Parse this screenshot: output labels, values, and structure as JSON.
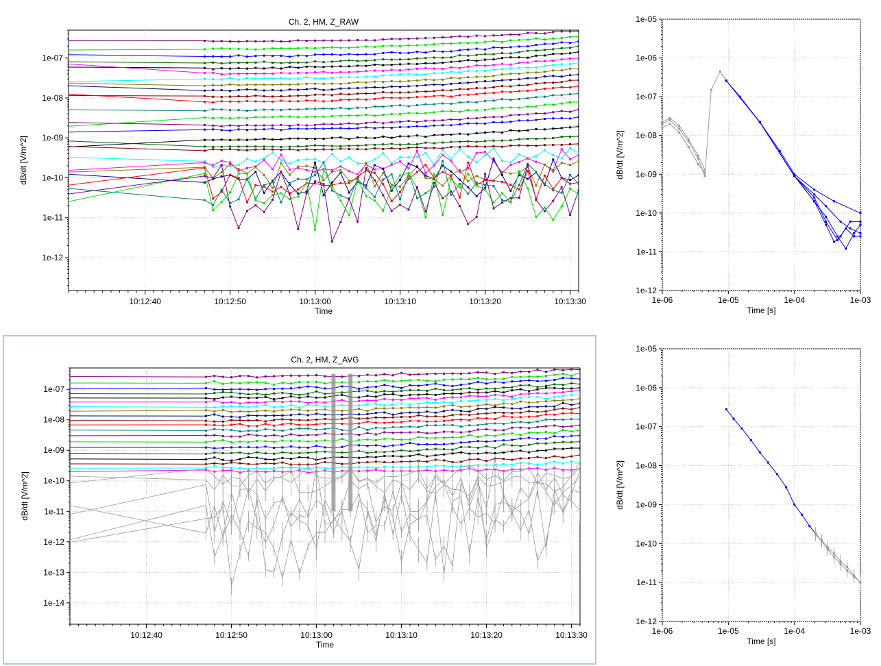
{
  "panels": [
    {
      "id": "raw_time",
      "title": "Ch. 2, HM, Z_RAW",
      "xlabel": "Time",
      "ylabel": "dB/dt [V/m^2]"
    },
    {
      "id": "raw_decay",
      "title": "",
      "xlabel": "Time [s]",
      "ylabel": "dB/dt [V/m^2]"
    },
    {
      "id": "avg_time",
      "title": "Ch. 2, HM, Z_AVG",
      "xlabel": "Time",
      "ylabel": "dB/dt [V/m^2]"
    },
    {
      "id": "avg_decay",
      "title": "",
      "xlabel": "Time [s]",
      "ylabel": "dB/dt [V/m^2]"
    }
  ],
  "chart_data": [
    {
      "id": "raw_time",
      "type": "line",
      "title": "Ch. 2, HM, Z_RAW",
      "xlabel": "Time",
      "ylabel": "dB/dt [V/m^2]",
      "y_scale": "log",
      "xlim": [
        "10:12:31",
        "10:13:31"
      ],
      "ylim": [
        1.5e-13,
        5e-07
      ],
      "x_ticks": [
        "10:12:40",
        "10:12:50",
        "10:13:00",
        "10:13:10",
        "10:13:20",
        "10:13:30"
      ],
      "y_ticks": [
        "1e-07",
        "1e-08",
        "1e-09",
        "1e-10",
        "1e-11",
        "1e-12"
      ],
      "grid": true,
      "legend": "none",
      "x_start": "10:12:31",
      "x_first_sample": "10:12:47",
      "x_end": "10:13:31",
      "series": [
        {
          "color": "#800080",
          "level_start": 2.6e-07,
          "level_end": 4.8e-07
        },
        {
          "color": "#00e000",
          "level_start": 1.7e-07,
          "level_end": 3.5e-07
        },
        {
          "color": "#0000ff",
          "level_start": 1.1e-07,
          "level_end": 2.6e-07
        },
        {
          "color": "#006400",
          "level_start": 7.5e-08,
          "level_end": 1.9e-07
        },
        {
          "color": "#000000",
          "level_start": 5.5e-08,
          "level_end": 1.4e-07
        },
        {
          "color": "#ff00ff",
          "level_start": 4.1e-08,
          "level_end": 1e-07
        },
        {
          "color": "#00ffff",
          "level_start": 3e-08,
          "level_end": 7.5e-08
        },
        {
          "color": "#808000",
          "level_start": 2.1e-08,
          "level_end": 5.5e-08
        },
        {
          "color": "#000080",
          "level_start": 1.55e-08,
          "level_end": 4e-08
        },
        {
          "color": "#800000",
          "level_start": 1.1e-08,
          "level_end": 2.8e-08
        },
        {
          "color": "#ff0000",
          "level_start": 8e-09,
          "level_end": 2e-08
        },
        {
          "color": "#008080",
          "level_start": 5e-09,
          "level_end": 1.3e-08
        },
        {
          "color": "#00e000",
          "level_start": 3.2e-09,
          "level_end": 8e-09
        },
        {
          "color": "#800080",
          "level_start": 2e-09,
          "level_end": 5e-09
        },
        {
          "color": "#0000ff",
          "level_start": 1.6e-09,
          "level_end": 3.3e-09
        },
        {
          "color": "#000000",
          "level_start": 9e-10,
          "level_end": 1.9e-09
        },
        {
          "color": "#006400",
          "level_start": 6e-10,
          "level_end": 1.1e-09
        },
        {
          "color": "#800000",
          "level_start": 5e-10,
          "level_end": 7e-10
        },
        {
          "color": "#00ffff",
          "level_start": 2.6e-10,
          "level_end": 4e-10
        },
        {
          "color": "#ff00ff",
          "level_start": 1.8e-10,
          "level_end": 2.5e-10
        },
        {
          "color": "#808000",
          "level_start": 1.2e-10,
          "level_end": 1.5e-10
        },
        {
          "color": "#000080",
          "level_start": 9e-11,
          "level_end": 1e-10
        },
        {
          "color": "#ff0000",
          "level_start": 8e-11,
          "level_end": 8e-11
        },
        {
          "color": "#008080",
          "level_start": 6e-11,
          "level_end": 6e-11
        },
        {
          "color": "#00e000",
          "level_start": 4e-11,
          "level_end": 4e-11
        },
        {
          "color": "#800080",
          "level_start": 2.5e-11,
          "level_end": 3e-11
        }
      ]
    },
    {
      "id": "raw_decay",
      "type": "line",
      "xlabel": "Time [s]",
      "ylabel": "dB/dt [V/m^2]",
      "x_scale": "log",
      "y_scale": "log",
      "xlim": [
        1e-06,
        0.001
      ],
      "ylim": [
        1e-12,
        1e-05
      ],
      "x_ticks": [
        "1e-06",
        "1e-05",
        "1e-04",
        "1e-03"
      ],
      "y_ticks": [
        "1e-05",
        "1e-06",
        "1e-07",
        "1e-08",
        "1e-09",
        "1e-10",
        "1e-11",
        "1e-12"
      ],
      "grid": true,
      "legend": "none",
      "series": [
        {
          "color": "#999999",
          "x": [
            1e-06,
            1.3e-06,
            1.8e-06,
            2.5e-06,
            3.5e-06,
            4.4e-06,
            5.5e-06,
            7.5e-06,
            9.3e-06
          ],
          "y": [
            2e-08,
            2.5e-08,
            1.5e-08,
            7e-09,
            2.5e-09,
            9e-10,
            1.5e-07,
            4.5e-07,
            2.6e-07
          ]
        },
        {
          "color": "#999999",
          "x": [
            1e-06,
            1.3e-06,
            1.8e-06,
            2.5e-06,
            3.5e-06,
            4.4e-06
          ],
          "y": [
            1.6e-08,
            2e-08,
            1.2e-08,
            5e-09,
            1.8e-09,
            1.1e-09
          ]
        },
        {
          "color": "#999999",
          "x": [
            1e-06,
            1.3e-06,
            1.8e-06,
            2.5e-06,
            3.5e-06,
            4.4e-06
          ],
          "y": [
            2.2e-08,
            2.8e-08,
            1.8e-08,
            8e-09,
            3e-09,
            1.3e-09
          ]
        },
        {
          "color": "#0000ff",
          "x": [
            9.3e-06,
            1.5e-05,
            3e-05,
            6e-05,
            0.0001,
            0.0002,
            0.0004,
            0.001
          ],
          "y": [
            2.6e-07,
            1e-07,
            2.2e-08,
            4e-09,
            1e-09,
            4e-10,
            2e-10,
            1e-10
          ]
        },
        {
          "color": "#0000ff",
          "x": [
            9.3e-06,
            3e-05,
            0.0001,
            0.0002,
            0.0003,
            0.00045,
            0.0006,
            0.0008,
            0.001
          ],
          "y": [
            2.6e-07,
            2.2e-08,
            9e-10,
            2.5e-10,
            6e-11,
            2e-11,
            4e-11,
            2.5e-11,
            2.5e-11
          ]
        },
        {
          "color": "#0000ff",
          "x": [
            9.3e-06,
            3e-05,
            0.0001,
            0.0002,
            0.0003,
            0.00045,
            0.0006,
            0.0008,
            0.001
          ],
          "y": [
            2.6e-07,
            2.2e-08,
            9e-10,
            2e-10,
            8e-11,
            2.5e-11,
            1.2e-11,
            3e-11,
            5e-11
          ]
        },
        {
          "color": "#0000ff",
          "x": [
            9.3e-06,
            3e-05,
            0.0001,
            0.0002,
            0.0003,
            0.0005,
            0.0007,
            0.001
          ],
          "y": [
            2.6e-07,
            2.2e-08,
            9e-10,
            3e-10,
            1.5e-10,
            6e-11,
            4e-11,
            3e-11
          ]
        },
        {
          "color": "#0000ff",
          "x": [
            9.3e-06,
            3e-05,
            0.0001,
            0.0002,
            0.0003,
            0.0004,
            0.0005,
            0.0007,
            0.001
          ],
          "y": [
            2.6e-07,
            2.2e-08,
            9e-10,
            2e-10,
            5e-11,
            1.8e-11,
            2.5e-11,
            6e-11,
            6e-11
          ]
        }
      ]
    },
    {
      "id": "avg_time",
      "type": "line",
      "title": "Ch. 2, HM, Z_AVG",
      "xlabel": "Time",
      "ylabel": "dB/dt [V/m^2]",
      "y_scale": "log",
      "xlim": [
        "10:12:31",
        "10:13:31"
      ],
      "ylim": [
        2e-15,
        5e-07
      ],
      "x_ticks": [
        "10:12:40",
        "10:12:50",
        "10:13:00",
        "10:13:10",
        "10:13:20",
        "10:13:30"
      ],
      "y_ticks": [
        "1e-07",
        "1e-08",
        "1e-09",
        "1e-10",
        "1e-11",
        "1e-12",
        "1e-13",
        "1e-14"
      ],
      "grid": true,
      "legend": "none",
      "x_first_sample": "10:12:47",
      "series": [
        {
          "color": "#800080",
          "level_start": 2.6e-07,
          "level_end": 4.6e-07
        },
        {
          "color": "#00e000",
          "level_start": 1.6e-07,
          "level_end": 3.2e-07
        },
        {
          "color": "#0000ff",
          "level_start": 1.05e-07,
          "level_end": 2.3e-07
        },
        {
          "color": "#006400",
          "level_start": 7.2e-08,
          "level_end": 1.6e-07
        },
        {
          "color": "#000000",
          "level_start": 5.2e-08,
          "level_end": 1.2e-07
        },
        {
          "color": "#ff00ff",
          "level_start": 3.8e-08,
          "level_end": 9e-08
        },
        {
          "color": "#00ffff",
          "level_start": 2.7e-08,
          "level_end": 6.6e-08
        },
        {
          "color": "#808000",
          "level_start": 1.9e-08,
          "level_end": 4.8e-08
        },
        {
          "color": "#000080",
          "level_start": 1.35e-08,
          "level_end": 3.4e-08
        },
        {
          "color": "#800000",
          "level_start": 9.5e-09,
          "level_end": 2.4e-08
        },
        {
          "color": "#ff0000",
          "level_start": 6.8e-09,
          "level_end": 1.7e-08
        },
        {
          "color": "#008080",
          "level_start": 4.6e-09,
          "level_end": 1.1e-08
        },
        {
          "color": "#800080",
          "level_start": 3e-09,
          "level_end": 7e-09
        },
        {
          "color": "#00e000",
          "level_start": 1.9e-09,
          "level_end": 4.6e-09
        },
        {
          "color": "#0000ff",
          "level_start": 1.25e-09,
          "level_end": 3e-09
        },
        {
          "color": "#006400",
          "level_start": 8e-10,
          "level_end": 1.9e-09
        },
        {
          "color": "#000000",
          "level_start": 5.2e-10,
          "level_end": 1.2e-09
        },
        {
          "color": "#800000",
          "level_start": 3.6e-10,
          "level_end": 6.8e-10
        },
        {
          "color": "#00ffff",
          "level_start": 2.6e-10,
          "level_end": 4e-10
        },
        {
          "color": "#ff00ff",
          "level_start": 2e-10,
          "level_end": 2.6e-10
        }
      ],
      "uncertain_series": [
        {
          "color": "#999999",
          "level_start": 1.2e-10,
          "level_end": 1.6e-10
        },
        {
          "color": "#999999",
          "level_start": 1e-10,
          "level_end": 1.2e-10
        },
        {
          "color": "#999999",
          "level_start": 1.3e-11,
          "level_end": 6e-11
        },
        {
          "color": "#999999",
          "level_start": 1.1e-11,
          "level_end": 4.5e-11
        },
        {
          "color": "#999999",
          "level_start": 1.5e-12,
          "level_end": 3e-11
        },
        {
          "color": "#999999",
          "level_start": 8e-13,
          "level_end": 2e-11
        }
      ],
      "highlight_times": [
        "10:13:02",
        "10:13:04"
      ]
    },
    {
      "id": "avg_decay",
      "type": "line",
      "xlabel": "Time [s]",
      "ylabel": "dB/dt [V/m^2]",
      "x_scale": "log",
      "y_scale": "log",
      "xlim": [
        1e-06,
        0.001
      ],
      "ylim": [
        1e-12,
        1e-05
      ],
      "x_ticks": [
        "1e-06",
        "1e-05",
        "1e-04",
        "1e-03"
      ],
      "y_ticks": [
        "1e-05",
        "1e-06",
        "1e-07",
        "1e-08",
        "1e-09",
        "1e-10",
        "1e-11",
        "1e-12"
      ],
      "grid": true,
      "legend": "none",
      "series": [
        {
          "color": "#0000ff",
          "x": [
            9.3e-06,
            1.2e-05,
            1.6e-05,
            2.2e-05,
            3e-05,
            4e-05,
            5.5e-05,
            7.5e-05,
            0.0001,
            0.00013,
            0.00017,
            0.00021
          ],
          "y": [
            2.8e-07,
            1.6e-07,
            9e-08,
            4.5e-08,
            2.2e-08,
            1.2e-08,
            6e-09,
            2.8e-09,
            1e-09,
            5.5e-10,
            2.8e-10,
            1.8e-10
          ]
        },
        {
          "color": "#999999",
          "x": [
            0.00021,
            0.00026,
            0.00032,
            0.0004,
            0.0005,
            0.00063,
            0.0008,
            0.001
          ],
          "y": [
            1.8e-10,
            1.2e-10,
            8e-11,
            5.5e-11,
            3.5e-11,
            2.5e-11,
            1.5e-11,
            1e-11
          ]
        },
        {
          "color": "#999999",
          "x": [
            0.00021,
            0.00026,
            0.00032,
            0.0004,
            0.0005,
            0.00063,
            0.0008,
            0.001
          ],
          "y": [
            1.7e-10,
            1.15e-10,
            7e-11,
            4.5e-11,
            3e-11,
            2e-11,
            1.4e-11,
            1e-11
          ]
        }
      ]
    }
  ]
}
